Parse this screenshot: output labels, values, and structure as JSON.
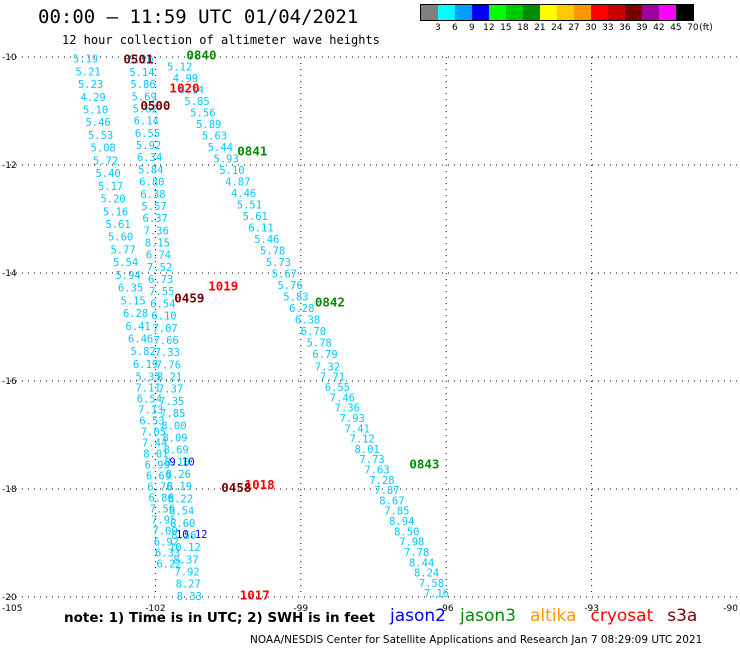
{
  "header": {
    "title": "00:00 – 11:59 UTC 01/04/2021",
    "subtitle": "12 hour collection of altimeter wave heights"
  },
  "legend": {
    "unit": "(ft)",
    "bins": [
      {
        "label": "3",
        "color": "#808080"
      },
      {
        "label": "6",
        "color": "#00ffff"
      },
      {
        "label": "9",
        "color": "#00a0ff"
      },
      {
        "label": "12",
        "color": "#0000ff"
      },
      {
        "label": "15",
        "color": "#00ff00"
      },
      {
        "label": "18",
        "color": "#00c800"
      },
      {
        "label": "21",
        "color": "#008c00"
      },
      {
        "label": "24",
        "color": "#ffff00"
      },
      {
        "label": "27",
        "color": "#ffc800"
      },
      {
        "label": "30",
        "color": "#ff9600"
      },
      {
        "label": "33",
        "color": "#ff0000"
      },
      {
        "label": "36",
        "color": "#c80000"
      },
      {
        "label": "39",
        "color": "#780000"
      },
      {
        "label": "42",
        "color": "#a000a0"
      },
      {
        "label": "45",
        "color": "#ff00ff"
      },
      {
        "label": "70",
        "color": "#000000"
      }
    ]
  },
  "footer": {
    "note": "note: 1) Time is in UTC; 2) SWH is in feet",
    "credit": "NOAA/NESDIS Center for Satellite Applications and Research   Jan  7 08:29:09 UTC 2021",
    "satellites": [
      {
        "name": "jason2",
        "color": "#0000ff"
      },
      {
        "name": "jason3",
        "color": "#008c00"
      },
      {
        "name": "altika",
        "color": "#ff9600"
      },
      {
        "name": "cryosat",
        "color": "#ff0000"
      },
      {
        "name": "s3a",
        "color": "#780000"
      }
    ]
  },
  "chart_data": {
    "type": "scatter",
    "xlim": [
      -105,
      -90
    ],
    "ylim": [
      -20,
      -10
    ],
    "x_ticks": [
      -105,
      -102,
      -99,
      -96,
      -93,
      -90
    ],
    "y_ticks": [
      -10,
      -12,
      -14,
      -16,
      -18,
      -20
    ],
    "x_tick_labels": [
      "-105",
      "-102",
      "-99",
      "-96",
      "-93",
      "-90"
    ],
    "y_tick_labels": [
      "-10",
      "-12",
      "-14",
      "-16",
      "-18",
      "-20"
    ],
    "grid": true,
    "tracks": [
      {
        "satellite": "jason3",
        "color": "#00c8ff",
        "lon_start": -103.44,
        "lat_start": -10.03,
        "lon_end": -102.15,
        "lat_end": -15.92,
        "values": [
          "5.19",
          "5.21",
          "5.23",
          "4.29",
          "5.10",
          "5.46",
          "5.53",
          "5.08",
          "5.72",
          "5.40",
          "5.17",
          "5.20",
          "5.16",
          "5.61",
          "5.60",
          "5.77",
          "5.54",
          "5.94",
          "6.35",
          "5.15",
          "6.28",
          "6.41",
          "6.46",
          "5.82",
          "6.19",
          "5.35"
        ]
      },
      {
        "satellite": "jason3",
        "color": "#00c8ff",
        "lon_start": -102.3,
        "lat_start": -10.05,
        "lon_end": -101.3,
        "lat_end": -19.98,
        "values": [
          "5.20",
          "5.14",
          "5.86",
          "5.69",
          "5.62",
          "6.14",
          "6.55",
          "5.92",
          "6.34",
          "5.84",
          "6.80",
          "6.38",
          "5.57",
          "6.37",
          "7.36",
          "8.15",
          "6.74",
          "7.52",
          "6.73",
          "7.55",
          "6.54",
          "6.10",
          "7.07",
          "7.66",
          "7.33",
          "7.76",
          "8.21",
          "7.37",
          "7.35",
          "7.85",
          "8.00",
          "8.09",
          "8.69",
          "8.10",
          "8.26",
          "8.19",
          "8.22",
          "8.54",
          "8.60",
          "8.56",
          "10.12",
          "8.37",
          "7.92",
          "8.27",
          "8.33"
        ]
      },
      {
        "satellite": "jason3",
        "color": "#00c8ff",
        "lon_start": -102.15,
        "lat_start": -16.12,
        "lon_end": -101.72,
        "lat_end": -19.38,
        "values": [
          "7.11",
          "6.54",
          "7.13",
          "6.53",
          "7.05",
          "7.44",
          "8.01",
          "6.99",
          "6.69",
          "6.76",
          "6.86",
          "7.56",
          "7.95",
          "7.00",
          "6.92",
          "6.33",
          "6.22"
        ]
      },
      {
        "satellite": "jason3",
        "color": "#00c8ff",
        "lon_start": -101.5,
        "lat_start": -10.18,
        "lon_end": -98.5,
        "lat_end": -15.5,
        "values": [
          "5.12",
          "4.99",
          "6.14",
          "5.85",
          "5.56",
          "5.89",
          "5.63",
          "5.44",
          "5.93",
          "5.10",
          "4.87",
          "4.46",
          "5.51",
          "5.61",
          "6.11",
          "5.46",
          "5.78",
          "5.73",
          "5.67",
          "5.76",
          "5.83",
          "6.28",
          "6.38",
          "6.70",
          "5.78",
          "6.79"
        ]
      },
      {
        "satellite": "jason3",
        "color": "#00c8ff",
        "lon_start": -98.45,
        "lat_start": -15.73,
        "lon_end": -96.2,
        "lat_end": -19.93,
        "values": [
          "7.32",
          "7.71",
          "6.55",
          "7.46",
          "7.36",
          "7.93",
          "7.41",
          "7.12",
          "8.01",
          "7.73",
          "7.63",
          "7.28",
          "7.87",
          "8.67",
          "7.85",
          "8.94",
          "8.50",
          "7.98",
          "7.78",
          "8.44",
          "8.24",
          "7.58",
          "7.16"
        ]
      }
    ],
    "time_labels": [
      {
        "text": "0501",
        "lon": -102.35,
        "lat": -10.05,
        "satellite": "s3a",
        "color": "#780000"
      },
      {
        "text": "0840",
        "lon": -101.05,
        "lat": -9.97,
        "satellite": "jason3",
        "color": "#008c00"
      },
      {
        "text": "1020",
        "lon": -101.4,
        "lat": -10.58,
        "satellite": "cryosat",
        "color": "#ff0000"
      },
      {
        "text": "0500",
        "lon": -102.0,
        "lat": -10.91,
        "satellite": "s3a",
        "color": "#780000"
      },
      {
        "text": "0841",
        "lon": -100.0,
        "lat": -11.75,
        "satellite": "jason3",
        "color": "#008c00"
      },
      {
        "text": "1019",
        "lon": -100.6,
        "lat": -14.25,
        "satellite": "cryosat",
        "color": "#ff0000"
      },
      {
        "text": "0459",
        "lon": -101.3,
        "lat": -14.47,
        "satellite": "s3a",
        "color": "#780000"
      },
      {
        "text": "0842",
        "lon": -98.4,
        "lat": -14.55,
        "satellite": "jason3",
        "color": "#008c00"
      },
      {
        "text": "0843",
        "lon": -96.45,
        "lat": -17.55,
        "satellite": "jason3",
        "color": "#008c00"
      },
      {
        "text": "9.10",
        "lon": -101.45,
        "lat": -17.49,
        "satellite": "jason2",
        "color": "#0000ff"
      },
      {
        "text": "1018",
        "lon": -99.85,
        "lat": -17.93,
        "satellite": "cryosat",
        "color": "#ff0000"
      },
      {
        "text": "0458",
        "lon": -100.33,
        "lat": -17.98,
        "satellite": "s3a",
        "color": "#780000"
      },
      {
        "text": "10.12",
        "lon": -101.25,
        "lat": -18.83,
        "satellite": "jason2",
        "color": "#0000ff"
      },
      {
        "text": "1017",
        "lon": -99.95,
        "lat": -19.97,
        "satellite": "cryosat",
        "color": "#ff0000"
      }
    ]
  }
}
